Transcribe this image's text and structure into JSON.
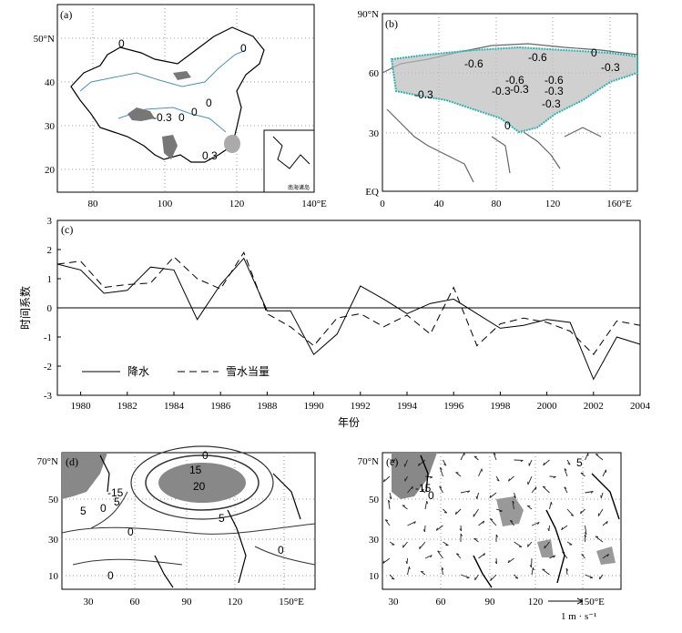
{
  "panel_a": {
    "label": "(a)",
    "lat_ticks": [
      "50°N",
      "40",
      "30",
      "20"
    ],
    "lon_ticks": [
      "80",
      "100",
      "120",
      "140°E"
    ],
    "contour_labels": [
      "0",
      "0",
      "0",
      "-0.3",
      "0",
      "0",
      "0.3"
    ],
    "inset_label": "南海诸岛"
  },
  "panel_b": {
    "label": "(b)",
    "lat_ticks": [
      "90°N",
      "60",
      "30",
      "EQ"
    ],
    "lon_ticks": [
      "0",
      "40",
      "80",
      "120",
      "160°E"
    ],
    "contour_labels": [
      "-0.6",
      "-0.6",
      "-0.6",
      "0",
      "-0.3",
      "-0.3",
      "-0.3",
      "-0.6",
      "-0.3",
      "-0.3",
      "-0.3",
      "0"
    ]
  },
  "panel_c": {
    "label": "(c)",
    "ylabel": "时间系数",
    "xlabel": "年份",
    "legend": [
      "降水",
      "雪水当量"
    ]
  },
  "panel_d": {
    "label": "(d)",
    "lat_ticks": [
      "70°N",
      "50",
      "30",
      "10"
    ],
    "lon_ticks": [
      "30",
      "60",
      "90",
      "120",
      "150°E"
    ],
    "contour_labels": [
      "0",
      "15",
      "20",
      "5",
      "-15",
      "0",
      "5",
      "0",
      "5",
      "0",
      "0"
    ]
  },
  "panel_e": {
    "label": "(e)",
    "lat_ticks": [
      "70°N",
      "50",
      "30",
      "10"
    ],
    "lon_ticks": [
      "30",
      "60",
      "90",
      "120",
      "150°E"
    ],
    "contour_labels": [
      "-15",
      "0",
      "5"
    ],
    "vector_unit": "1 m · s⁻¹"
  },
  "chart_data": {
    "type": "line",
    "xlabel": "年份",
    "ylabel": "时间系数",
    "xlim": [
      1979,
      2004
    ],
    "ylim": [
      -3,
      3
    ],
    "x_ticks": [
      1980,
      1982,
      1984,
      1986,
      1988,
      1990,
      1992,
      1994,
      1996,
      1998,
      2000,
      2002,
      2004
    ],
    "y_ticks": [
      -3,
      -2,
      -1,
      0,
      1,
      2,
      3
    ],
    "x": [
      1979,
      1980,
      1981,
      1982,
      1983,
      1984,
      1985,
      1986,
      1987,
      1988,
      1989,
      1990,
      1991,
      1992,
      1993,
      1994,
      1995,
      1996,
      1997,
      1998,
      1999,
      2000,
      2001,
      2002,
      2003,
      2004
    ],
    "series": [
      {
        "name": "降水",
        "style": "solid",
        "values": [
          1.5,
          1.3,
          0.5,
          0.6,
          1.4,
          1.3,
          -0.4,
          0.8,
          1.7,
          -0.1,
          -0.1,
          -1.6,
          -0.9,
          0.75,
          0.3,
          -0.2,
          0.15,
          0.3,
          -0.2,
          -0.7,
          -0.6,
          -0.4,
          -0.5,
          -2.45,
          -1.0,
          -1.25
        ]
      },
      {
        "name": "雪水当量",
        "style": "dashed",
        "values": [
          1.5,
          1.6,
          0.7,
          0.8,
          0.85,
          1.75,
          1.0,
          0.65,
          1.9,
          -0.2,
          -0.65,
          -1.3,
          -0.35,
          -0.2,
          -0.65,
          -0.25,
          -0.9,
          0.7,
          -1.3,
          -0.55,
          -0.35,
          -0.5,
          -0.8,
          -1.6,
          -0.45,
          -0.6
        ]
      }
    ]
  }
}
